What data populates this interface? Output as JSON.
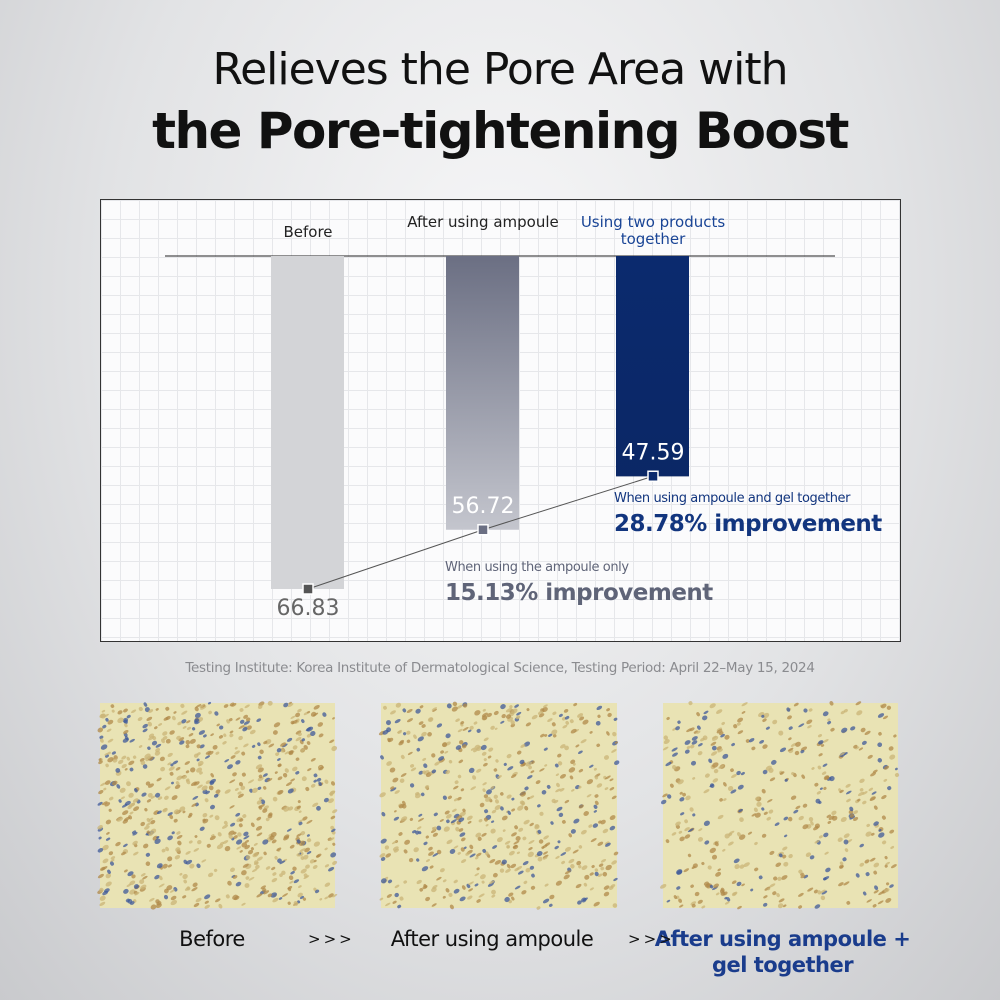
{
  "header": {
    "title_line1": "Relieves the Pore Area with",
    "title_line2": "the Pore-tightening Boost"
  },
  "chart_data": {
    "type": "bar",
    "direction": "down",
    "categories": [
      "Before",
      "After using ampoule",
      "Using two products together"
    ],
    "values": [
      66.83,
      56.72,
      47.59
    ],
    "colors": [
      "#d3d4d7",
      "#6b6f83",
      "#0b2a6e"
    ],
    "label_colors": [
      "#222222",
      "#222222",
      "#1a4596"
    ],
    "ylim": [
      10,
      67
    ],
    "annotations": [
      {
        "text": "When using the ampoule only",
        "highlight": "15.13% improvement",
        "color": "#5f6478"
      },
      {
        "text": "When using ampoule  and gel together",
        "highlight": "28.78% improvement",
        "color": "#12357e"
      }
    ]
  },
  "footnote": "Testing Institute: Korea Institute of Dermatological Science, Testing Period: April 22–May 15, 2024",
  "images": {
    "captions": [
      "Before",
      "After using ampoule",
      "After using ampoule + gel together"
    ],
    "separators": [
      ">>>",
      ">>>"
    ]
  }
}
